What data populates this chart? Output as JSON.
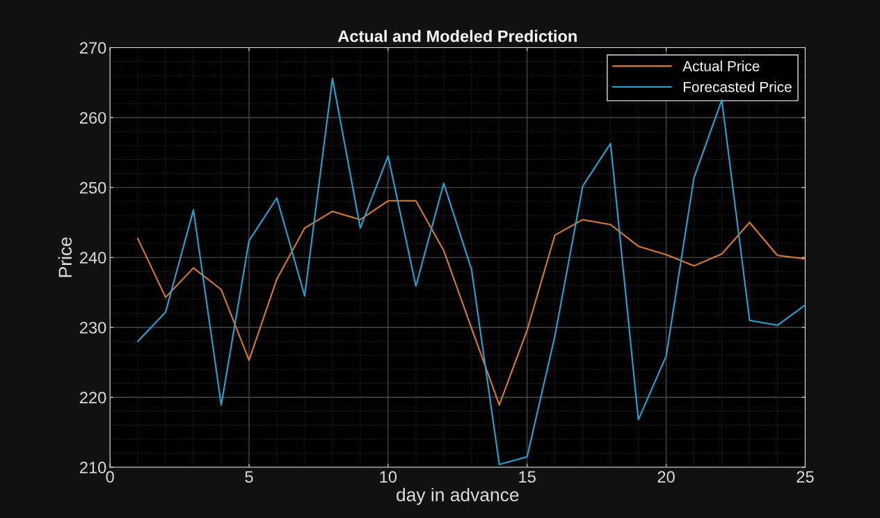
{
  "chart_data": {
    "type": "line",
    "title": "Actual and Modeled Prediction",
    "xlabel": "day in advance",
    "ylabel": "Price",
    "x": [
      1,
      2,
      3,
      4,
      5,
      6,
      7,
      8,
      9,
      10,
      11,
      12,
      13,
      14,
      15,
      16,
      17,
      18,
      19,
      20,
      21,
      22,
      23,
      24,
      25
    ],
    "series": [
      {
        "name": "Actual Price",
        "color": "#d97b2b",
        "values": [
          242.7,
          234.3,
          238.5,
          235.4,
          225.3,
          236.9,
          244.2,
          246.6,
          245.4,
          248.1,
          248.1,
          241.0,
          229.9,
          218.9,
          229.6,
          243.2,
          245.4,
          244.7,
          241.6,
          240.4,
          238.8,
          240.5,
          245.0,
          240.3,
          239.8
        ]
      },
      {
        "name": "Forecasted Price",
        "color": "#21a6d8",
        "values": [
          228.0,
          232.2,
          246.8,
          218.9,
          242.4,
          248.5,
          234.5,
          265.6,
          244.2,
          254.5,
          235.9,
          250.6,
          238.3,
          210.4,
          211.5,
          228.8,
          250.2,
          256.3,
          216.8,
          225.9,
          251.4,
          262.5,
          231.0,
          230.3,
          233.2
        ]
      }
    ],
    "xlim": [
      0,
      25
    ],
    "xticks": [
      0,
      5,
      10,
      15,
      20,
      25
    ],
    "ylim": [
      210,
      270
    ],
    "yticks": [
      210,
      220,
      230,
      240,
      250,
      260,
      270
    ],
    "grid": true,
    "legend": "top right",
    "marker": "none",
    "line_style": "solid"
  }
}
